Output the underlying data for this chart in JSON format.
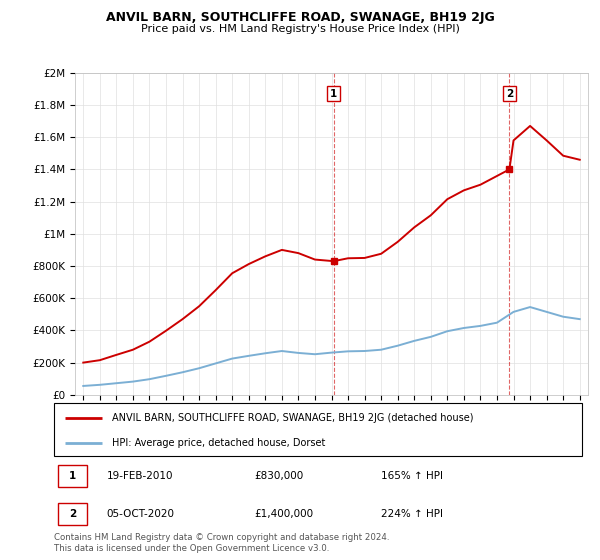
{
  "title": "ANVIL BARN, SOUTHCLIFFE ROAD, SWANAGE, BH19 2JG",
  "subtitle": "Price paid vs. HM Land Registry's House Price Index (HPI)",
  "hpi_years": [
    1995,
    1996,
    1997,
    1998,
    1999,
    2000,
    2001,
    2002,
    2003,
    2004,
    2005,
    2006,
    2007,
    2008,
    2009,
    2010,
    2011,
    2012,
    2013,
    2014,
    2015,
    2016,
    2017,
    2018,
    2019,
    2020,
    2021,
    2022,
    2023,
    2024,
    2025
  ],
  "hpi_values": [
    55000,
    62000,
    72000,
    82000,
    97000,
    118000,
    140000,
    165000,
    195000,
    225000,
    242000,
    258000,
    272000,
    260000,
    252000,
    262000,
    270000,
    272000,
    280000,
    305000,
    335000,
    360000,
    395000,
    415000,
    428000,
    448000,
    515000,
    545000,
    515000,
    485000,
    470000
  ],
  "red_years": [
    1995,
    1996,
    1997,
    1998,
    1999,
    2000,
    2001,
    2002,
    2003,
    2004,
    2005,
    2006,
    2007,
    2008,
    2009,
    2010.13,
    2011,
    2012,
    2013,
    2014,
    2015,
    2016,
    2017,
    2018,
    2019,
    2020.75,
    2021,
    2022,
    2023,
    2024,
    2025
  ],
  "red_values": [
    200000,
    215000,
    248000,
    280000,
    330000,
    398000,
    470000,
    550000,
    650000,
    755000,
    812000,
    860000,
    900000,
    880000,
    840000,
    830000,
    848000,
    850000,
    876000,
    950000,
    1040000,
    1115000,
    1215000,
    1270000,
    1305000,
    1400000,
    1580000,
    1670000,
    1580000,
    1485000,
    1460000
  ],
  "sale_years": [
    2010.13,
    2020.75
  ],
  "sale_values": [
    830000,
    1400000
  ],
  "sale_labels": [
    "1",
    "2"
  ],
  "hpi_color": "#7bafd4",
  "sale_color": "#cc0000",
  "ylim": [
    0,
    2000000
  ],
  "yticks": [
    0,
    200000,
    400000,
    600000,
    800000,
    1000000,
    1200000,
    1400000,
    1600000,
    1800000,
    2000000
  ],
  "ytick_labels": [
    "£0",
    "£200K",
    "£400K",
    "£600K",
    "£800K",
    "£1M",
    "£1.2M",
    "£1.4M",
    "£1.6M",
    "£1.8M",
    "£2M"
  ],
  "xlim_start": 1994.5,
  "xlim_end": 2025.5,
  "legend_line1": "ANVIL BARN, SOUTHCLIFFE ROAD, SWANAGE, BH19 2JG (detached house)",
  "legend_line2": "HPI: Average price, detached house, Dorset",
  "annotation1_num": "1",
  "annotation1_date": "19-FEB-2010",
  "annotation1_price": "£830,000",
  "annotation1_hpi": "165% ↑ HPI",
  "annotation2_num": "2",
  "annotation2_date": "05-OCT-2020",
  "annotation2_price": "£1,400,000",
  "annotation2_hpi": "224% ↑ HPI",
  "footer": "Contains HM Land Registry data © Crown copyright and database right 2024.\nThis data is licensed under the Open Government Licence v3.0.",
  "background_color": "#ffffff",
  "grid_color": "#e0e0e0"
}
